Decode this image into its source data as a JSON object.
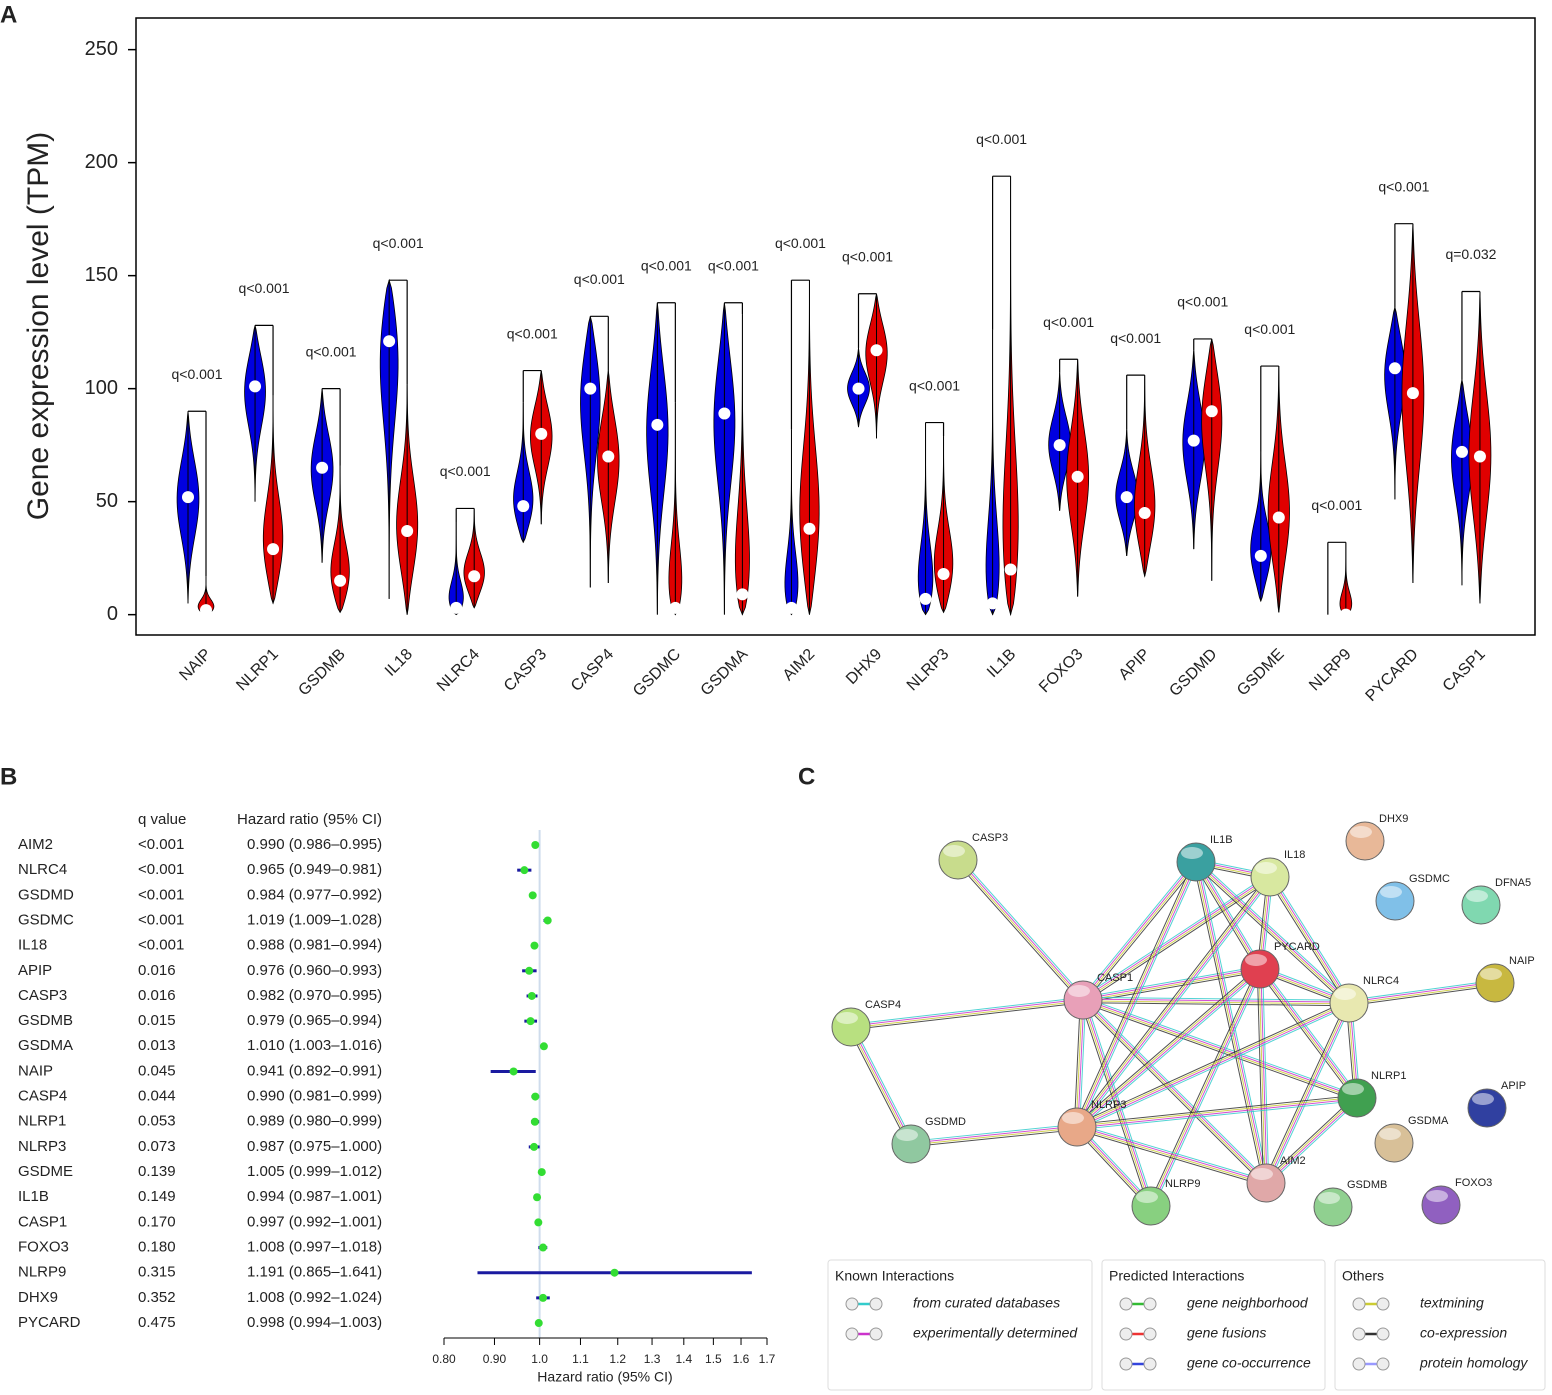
{
  "panels": [
    "A",
    "B",
    "C"
  ],
  "chart_data": [
    {
      "type": "violin",
      "ylabel": "Gene expression level (TPM)",
      "categories": [
        "NAIP",
        "NLRP1",
        "GSDMB",
        "IL18",
        "NLRC4",
        "CASP3",
        "CASP4",
        "GSDMC",
        "GSDMA",
        "AIM2",
        "DHX9",
        "NLRP3",
        "IL1B",
        "FOXO3",
        "APIP",
        "GSDMD",
        "GSDME",
        "NLRP9",
        "PYCARD",
        "CASP1"
      ],
      "series": [
        {
          "color": "#0000e0",
          "values": [
            52,
            101,
            65,
            121,
            3,
            48,
            100,
            84,
            89,
            3,
            100,
            7,
            5,
            75,
            52,
            77,
            26,
            0,
            109,
            72
          ],
          "min": [
            5,
            50,
            23,
            7,
            0,
            32,
            12,
            0,
            0,
            0,
            83,
            0,
            0,
            46,
            26,
            29,
            6,
            0,
            51,
            13
          ],
          "max": [
            90,
            128,
            100,
            148,
            41,
            94,
            132,
            138,
            138,
            82,
            118,
            85,
            126,
            107,
            82,
            117,
            72,
            0,
            136,
            104
          ]
        },
        {
          "color": "#e00000",
          "values": [
            2,
            29,
            15,
            37,
            17,
            80,
            70,
            3,
            9,
            38,
            117,
            18,
            20,
            61,
            45,
            90,
            43,
            0,
            98,
            70
          ],
          "min": [
            0,
            5,
            1,
            0,
            3,
            40,
            14,
            0,
            0,
            0,
            78,
            1,
            0,
            8,
            17,
            15,
            1,
            0,
            14,
            5
          ],
          "max": [
            17,
            97,
            66,
            102,
            47,
            108,
            108,
            94,
            133,
            148,
            142,
            79,
            194,
            113,
            106,
            122,
            110,
            32,
            173,
            143
          ]
        }
      ],
      "annotations": [
        "q<0.001",
        "q<0.001",
        "q<0.001",
        "q<0.001",
        "q<0.001",
        "q<0.001",
        "q<0.001",
        "q<0.001",
        "q<0.001",
        "q<0.001",
        "q<0.001",
        "q<0.001",
        "q<0.001",
        "q<0.001",
        "q<0.001",
        "q<0.001",
        "q<0.001",
        "q<0.001",
        "q<0.001",
        "q=0.032"
      ],
      "ylim": [
        -9,
        264
      ],
      "yticks": [
        0,
        50,
        100,
        150,
        200,
        250
      ]
    },
    {
      "type": "forest",
      "headers": [
        "q value",
        "Hazard ratio (95% CI)"
      ],
      "xlabel": "Hazard ratio (95% CI)",
      "categories": [
        "AIM2",
        "NLRC4",
        "GSDMD",
        "GSDMC",
        "IL18",
        "APIP",
        "CASP3",
        "GSDMB",
        "GSDMA",
        "NAIP",
        "CASP4",
        "NLRP1",
        "NLRP3",
        "GSDME",
        "IL1B",
        "CASP1",
        "FOXO3",
        "NLRP9",
        "DHX9",
        "PYCARD"
      ],
      "q_values": [
        "<0.001",
        "<0.001",
        "<0.001",
        "<0.001",
        "<0.001",
        "0.016",
        "0.016",
        "0.015",
        "0.013",
        "0.045",
        "0.044",
        "0.053",
        "0.073",
        "0.139",
        "0.149",
        "0.170",
        "0.180",
        "0.315",
        "0.352",
        "0.475"
      ],
      "values": [
        0.99,
        0.965,
        0.984,
        1.019,
        0.988,
        0.976,
        0.982,
        0.979,
        1.01,
        0.941,
        0.99,
        0.989,
        0.987,
        1.005,
        0.994,
        0.997,
        1.008,
        1.191,
        1.008,
        0.998
      ],
      "lower": [
        0.986,
        0.949,
        0.977,
        1.009,
        0.981,
        0.96,
        0.97,
        0.965,
        1.003,
        0.892,
        0.981,
        0.98,
        0.975,
        0.999,
        0.987,
        0.992,
        0.997,
        0.865,
        0.992,
        0.994
      ],
      "upper": [
        0.995,
        0.981,
        0.992,
        1.028,
        0.994,
        0.993,
        0.995,
        0.994,
        1.016,
        0.991,
        0.999,
        0.999,
        1.0,
        1.012,
        1.001,
        1.001,
        1.018,
        1.641,
        1.024,
        1.003
      ],
      "value_labels": [
        "0.990 (0.986–0.995)",
        "0.965 (0.949–0.981)",
        "0.984 (0.977–0.992)",
        "1.019 (1.009–1.028)",
        "0.988 (0.981–0.994)",
        "0.976 (0.960–0.993)",
        "0.982 (0.970–0.995)",
        "0.979 (0.965–0.994)",
        "1.010 (1.003–1.016)",
        "0.941 (0.892–0.991)",
        "0.990 (0.981–0.999)",
        "0.989 (0.980–0.999)",
        "0.987 (0.975–1.000)",
        "1.005 (0.999–1.012)",
        "0.994 (0.987–1.001)",
        "0.997 (0.992–1.001)",
        "1.008 (0.997–1.018)",
        "1.191 (0.865–1.641)",
        "1.008 (0.992–1.024)",
        "0.998 (0.994–1.003)"
      ],
      "line_color": "#1a1aa0",
      "point_color": "#33dd33",
      "xscale": "log",
      "xlim": [
        0.8,
        1.7
      ],
      "reference": 1,
      "xticks": [
        {
          "value": 0.8,
          "label": "0.80"
        },
        {
          "value": 0.9,
          "label": "0.90"
        },
        {
          "value": 1,
          "label": "1.0"
        },
        1.1,
        1.2,
        1.3,
        1.4,
        1.5,
        1.6,
        1.7
      ]
    }
  ],
  "network": {
    "nodes": [
      {
        "label": "CASP3",
        "color": "#c8dc8c"
      },
      {
        "label": "IL1B",
        "color": "#3aa0a0"
      },
      {
        "label": "IL18",
        "color": "#d8e8a0"
      },
      {
        "label": "DHX9",
        "color": "#e8b898"
      },
      {
        "label": "GSDMC",
        "color": "#80c0e8"
      },
      {
        "label": "DFNA5",
        "color": "#80d8b0"
      },
      {
        "label": "PYCARD",
        "color": "#e04050"
      },
      {
        "label": "CASP1",
        "color": "#e8a0b8"
      },
      {
        "label": "NLRC4",
        "color": "#e8e8b0"
      },
      {
        "label": "NAIP",
        "color": "#c8b840"
      },
      {
        "label": "CASP4",
        "color": "#b8e080"
      },
      {
        "label": "NLRP1",
        "color": "#40a050"
      },
      {
        "label": "APIP",
        "color": "#3040a0"
      },
      {
        "label": "GSDMA",
        "color": "#d8c098"
      },
      {
        "label": "NLRP3",
        "color": "#e8a888"
      },
      {
        "label": "GSDMD",
        "color": "#90c8a0"
      },
      {
        "label": "AIM2",
        "color": "#e0a8a8"
      },
      {
        "label": "NLRP9",
        "color": "#88d080"
      },
      {
        "label": "GSDMB",
        "color": "#90d090"
      },
      {
        "label": "FOXO3",
        "color": "#9060c0"
      }
    ],
    "edges": [
      [
        "CASP3",
        "CASP1"
      ],
      [
        "CASP4",
        "CASP1"
      ],
      [
        "CASP4",
        "GSDMD"
      ],
      [
        "GSDMD",
        "NLRP3"
      ],
      [
        "CASP1",
        "IL1B"
      ],
      [
        "CASP1",
        "IL18"
      ],
      [
        "CASP1",
        "PYCARD"
      ],
      [
        "CASP1",
        "NLRC4"
      ],
      [
        "CASP1",
        "NLRP1"
      ],
      [
        "CASP1",
        "NLRP3"
      ],
      [
        "CASP1",
        "AIM2"
      ],
      [
        "CASP1",
        "NLRP9"
      ],
      [
        "IL1B",
        "IL18"
      ],
      [
        "IL1B",
        "PYCARD"
      ],
      [
        "IL1B",
        "NLRC4"
      ],
      [
        "IL1B",
        "NLRP3"
      ],
      [
        "IL1B",
        "AIM2"
      ],
      [
        "IL18",
        "PYCARD"
      ],
      [
        "IL18",
        "NLRC4"
      ],
      [
        "IL18",
        "NLRP3"
      ],
      [
        "PYCARD",
        "NLRC4"
      ],
      [
        "PYCARD",
        "NLRP1"
      ],
      [
        "PYCARD",
        "NLRP3"
      ],
      [
        "PYCARD",
        "AIM2"
      ],
      [
        "PYCARD",
        "NLRP9"
      ],
      [
        "NLRC4",
        "NAIP"
      ],
      [
        "NLRC4",
        "NLRP1"
      ],
      [
        "NLRC4",
        "NLRP3"
      ],
      [
        "NLRC4",
        "AIM2"
      ],
      [
        "NLRP1",
        "NLRP3"
      ],
      [
        "NLRP1",
        "AIM2"
      ],
      [
        "NLRP3",
        "AIM2"
      ],
      [
        "NLRP3",
        "NLRP9"
      ]
    ],
    "legend": [
      {
        "title": "Known Interactions",
        "items": [
          {
            "label": "from curated databases",
            "color": "#33cccc"
          },
          {
            "label": "experimentally determined",
            "color": "#cc33cc"
          }
        ]
      },
      {
        "title": "Predicted Interactions",
        "items": [
          {
            "label": "gene neighborhood",
            "color": "#33bb33"
          },
          {
            "label": "gene fusions",
            "color": "#ee3333"
          },
          {
            "label": "gene co-occurrence",
            "color": "#3344dd"
          }
        ]
      },
      {
        "title": "Others",
        "items": [
          {
            "label": "textmining",
            "color": "#cccc33"
          },
          {
            "label": "co-expression",
            "color": "#333333"
          },
          {
            "label": "protein homology",
            "color": "#9999ff"
          }
        ]
      }
    ]
  }
}
